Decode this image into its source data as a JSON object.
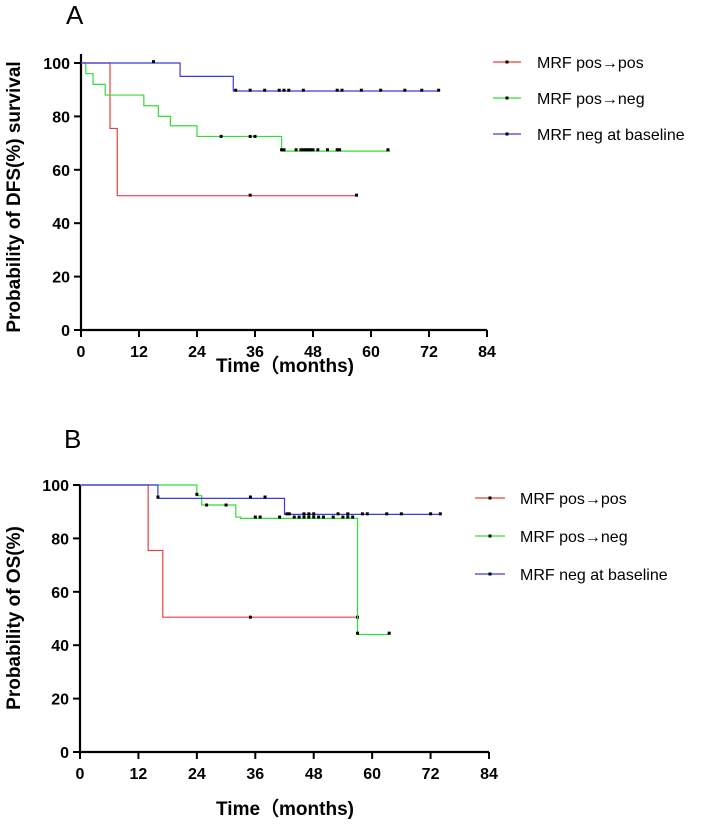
{
  "chart_data": [
    {
      "type": "line",
      "subtype": "kaplan-meier",
      "panel_label": "A",
      "xlabel": "Time（months)",
      "ylabel": "Probability of DFS(%) survival",
      "xlim": [
        0,
        84
      ],
      "ylim": [
        0,
        100
      ],
      "xticks": [
        0,
        12,
        24,
        36,
        48,
        60,
        72,
        84
      ],
      "yticks": [
        0,
        20,
        40,
        60,
        80,
        100
      ],
      "legend_position": "top-right",
      "series": [
        {
          "name": "MRF pos→pos",
          "color": "#e8423c",
          "steps": [
            [
              0,
              100
            ],
            [
              6,
              75.5
            ],
            [
              7.5,
              50.3
            ],
            [
              57,
              50.3
            ]
          ],
          "censored": [
            [
              35,
              50.5
            ],
            [
              57,
              50.5
            ]
          ]
        },
        {
          "name": "MRF pos→neg",
          "color": "#33dd33",
          "steps": [
            [
              0,
              100
            ],
            [
              1,
              96
            ],
            [
              2.5,
              92
            ],
            [
              5,
              88
            ],
            [
              13,
              84
            ],
            [
              16,
              80
            ],
            [
              18.5,
              76.5
            ],
            [
              24,
              72.5
            ],
            [
              41.5,
              67
            ],
            [
              64,
              67
            ]
          ],
          "censored": [
            [
              29,
              72.5
            ],
            [
              35,
              72.5
            ],
            [
              36,
              72.5
            ],
            [
              41.5,
              67.5
            ],
            [
              42,
              67.5
            ],
            [
              44.5,
              67.5
            ],
            [
              45.5,
              67.5
            ],
            [
              46,
              67.5
            ],
            [
              46.5,
              67.5
            ],
            [
              47,
              67.5
            ],
            [
              47.5,
              67.5
            ],
            [
              48,
              67.5
            ],
            [
              49,
              67.5
            ],
            [
              51,
              67.5
            ],
            [
              53,
              67.5
            ],
            [
              53.5,
              67.5
            ],
            [
              63.5,
              67.5
            ]
          ]
        },
        {
          "name": "MRF neg at baseline",
          "color": "#3c3cdc",
          "steps": [
            [
              0,
              100
            ],
            [
              20.5,
              95
            ],
            [
              31.5,
              89.5
            ],
            [
              74,
              89.5
            ]
          ],
          "censored": [
            [
              15,
              100.5
            ],
            [
              32,
              89.8
            ],
            [
              35,
              89.8
            ],
            [
              38,
              89.8
            ],
            [
              41,
              89.8
            ],
            [
              42,
              89.8
            ],
            [
              43,
              89.8
            ],
            [
              46,
              89.8
            ],
            [
              53,
              89.8
            ],
            [
              54,
              89.8
            ],
            [
              58,
              89.8
            ],
            [
              62,
              89.8
            ],
            [
              67,
              89.8
            ],
            [
              70.5,
              89.8
            ],
            [
              74,
              89.8
            ]
          ]
        }
      ]
    },
    {
      "type": "line",
      "subtype": "kaplan-meier",
      "panel_label": "B",
      "xlabel": "Time（months)",
      "ylabel": "Probability of OS(%)",
      "xlim": [
        0,
        84
      ],
      "ylim": [
        0,
        100
      ],
      "xticks": [
        0,
        12,
        24,
        36,
        48,
        60,
        72,
        84
      ],
      "yticks": [
        0,
        20,
        40,
        60,
        80,
        100
      ],
      "legend_position": "right",
      "series": [
        {
          "name": "MRF pos→pos",
          "color": "#e8423c",
          "steps": [
            [
              0,
              100
            ],
            [
              14,
              75.5
            ],
            [
              17,
              50.5
            ],
            [
              57,
              50.5
            ]
          ],
          "censored": [
            [
              35,
              50.5
            ],
            [
              57,
              50.5
            ]
          ]
        },
        {
          "name": "MRF pos→neg",
          "color": "#33dd33",
          "steps": [
            [
              0,
              100
            ],
            [
              24,
              96
            ],
            [
              25,
              92.5
            ],
            [
              32,
              88
            ],
            [
              33,
              87.5
            ],
            [
              57,
              44
            ],
            [
              63.5,
              44
            ]
          ],
          "censored": [
            [
              24,
              96.5
            ],
            [
              26,
              92.5
            ],
            [
              30,
              92.5
            ],
            [
              36,
              88
            ],
            [
              37,
              88
            ],
            [
              41,
              88
            ],
            [
              44,
              88
            ],
            [
              45,
              88
            ],
            [
              46,
              88
            ],
            [
              47,
              88
            ],
            [
              48,
              88
            ],
            [
              49,
              88
            ],
            [
              50,
              88
            ],
            [
              52,
              88
            ],
            [
              54,
              88
            ],
            [
              55,
              88
            ],
            [
              56,
              88
            ],
            [
              57,
              44.5
            ],
            [
              63.5,
              44.5
            ]
          ]
        },
        {
          "name": "MRF neg at baseline",
          "color": "#3c3cdc",
          "steps": [
            [
              0,
              100
            ],
            [
              16,
              95
            ],
            [
              42,
              89
            ],
            [
              74,
              89
            ]
          ],
          "censored": [
            [
              16,
              95.5
            ],
            [
              35,
              95.5
            ],
            [
              38,
              95.5
            ],
            [
              42.5,
              89.2
            ],
            [
              43,
              89.2
            ],
            [
              46,
              89.2
            ],
            [
              47,
              89.2
            ],
            [
              48,
              89.2
            ],
            [
              53,
              89.2
            ],
            [
              55,
              89.2
            ],
            [
              58,
              89.2
            ],
            [
              59,
              89.2
            ],
            [
              63,
              89.2
            ],
            [
              66,
              89.2
            ],
            [
              72,
              89.2
            ],
            [
              74,
              89.2
            ]
          ]
        }
      ]
    }
  ]
}
